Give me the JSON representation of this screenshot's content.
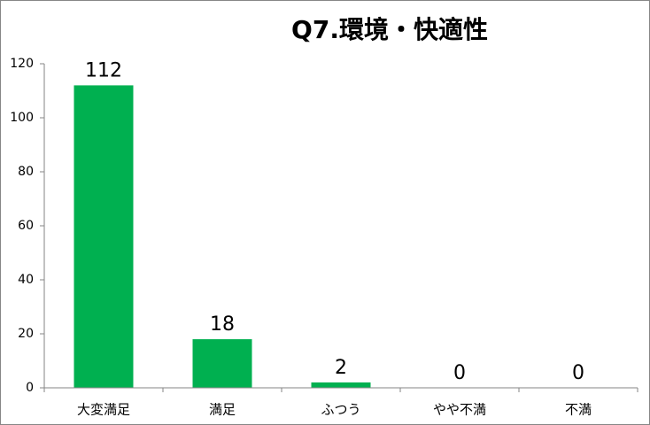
{
  "chart_data": {
    "type": "bar",
    "title": "Q7.環境・快適性",
    "categories": [
      "大変満足",
      "満足",
      "ふつう",
      "やや不満",
      "不満"
    ],
    "values": [
      112,
      18,
      2,
      0,
      0
    ],
    "color": "#00b050",
    "ylim": [
      0,
      120
    ],
    "yticks": [
      0,
      20,
      40,
      60,
      80,
      100,
      120
    ],
    "grid": false
  }
}
